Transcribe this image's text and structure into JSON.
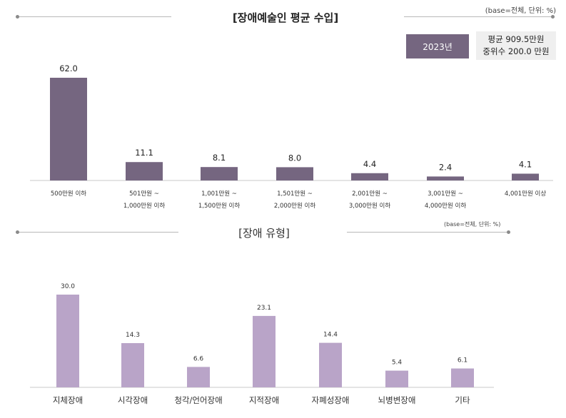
{
  "charts": {
    "income": {
      "title": "[장애예술인 평균 수입]",
      "base_note": "(base=전체, 단위: %)",
      "year_badge": "2023년",
      "stats": {
        "mean": "평균 909.5만원",
        "median": "중위수 200.0 만원"
      }
    },
    "disability": {
      "title": "[장애 유형]",
      "base_note": "(base=전체, 단위: %)"
    }
  },
  "chart_data": [
    {
      "type": "bar",
      "title": "[장애예술인 평균 수입]",
      "categories": [
        [
          "500만원 이하"
        ],
        [
          "501만원 ~",
          "1,000만원 이하"
        ],
        [
          "1,001만원 ~",
          "1,500만원 이하"
        ],
        [
          "1,501만원 ~",
          "2,000만원 이하"
        ],
        [
          "2,001만원 ~",
          "3,000만원 이하"
        ],
        [
          "3,001만원 ~",
          "4,000만원 이하"
        ],
        [
          "4,001만원 이상"
        ]
      ],
      "values": [
        62.0,
        11.1,
        8.1,
        8.0,
        4.4,
        2.4,
        4.1
      ],
      "labels": [
        "62.0",
        "11.1",
        "8.1",
        "8.0",
        "4.4",
        "2.4",
        "4.1"
      ],
      "ylim": [
        0,
        62
      ],
      "unit": "%",
      "color": "#756680"
    },
    {
      "type": "bar",
      "title": "[장애 유형]",
      "categories": [
        "지체장애",
        "시각장애",
        "청각/언어장애",
        "지적장애",
        "자폐성장애",
        "뇌병변장애",
        "기타"
      ],
      "values": [
        30.0,
        14.3,
        6.6,
        23.1,
        14.4,
        5.4,
        6.1
      ],
      "labels": [
        "30.0",
        "14.3",
        "6.6",
        "23.1",
        "14.4",
        "5.4",
        "6.1"
      ],
      "ylim": [
        0,
        30
      ],
      "unit": "%",
      "color": "#b9a4c8"
    }
  ]
}
